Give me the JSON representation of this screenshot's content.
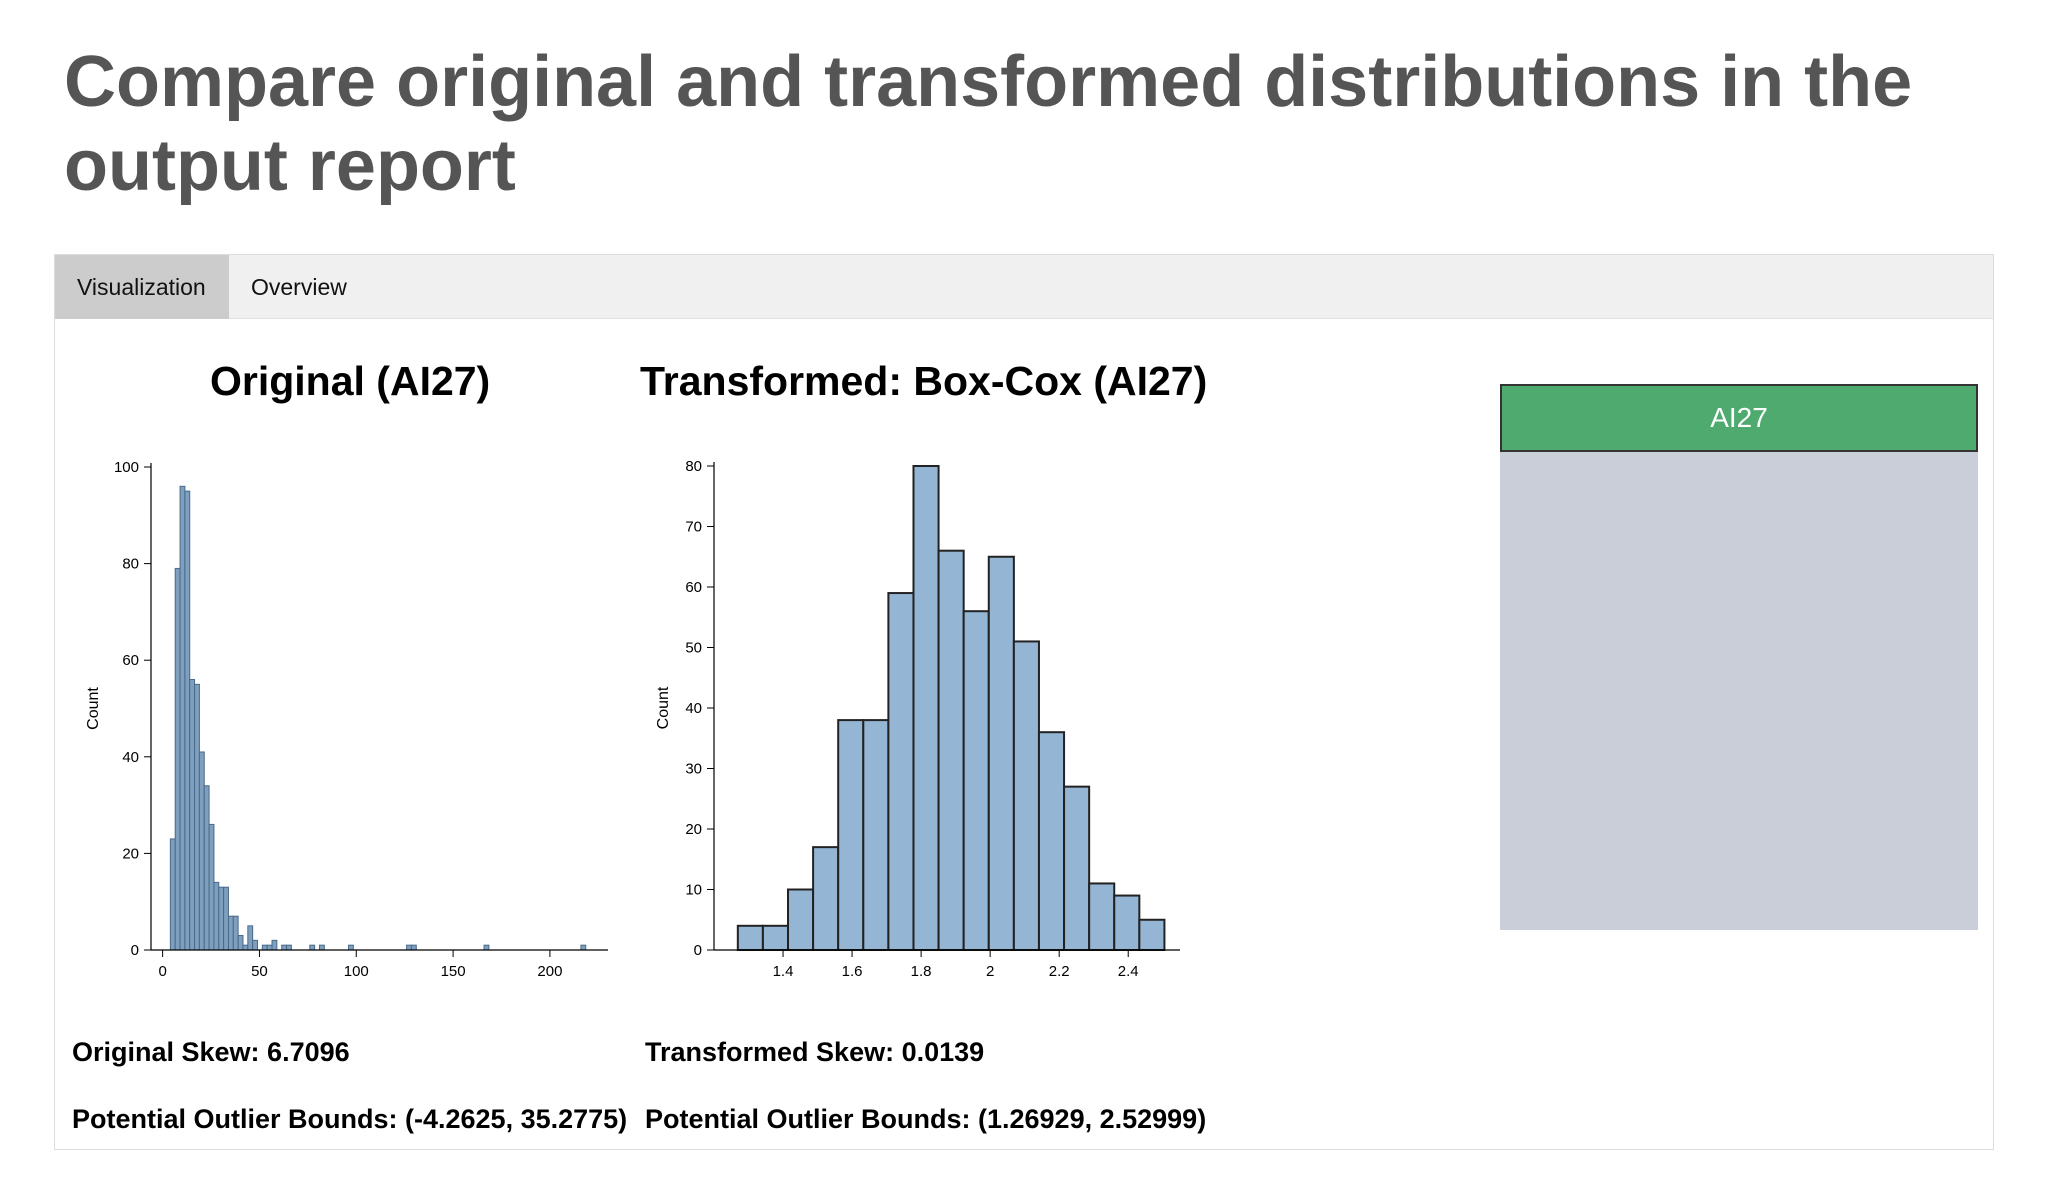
{
  "page": {
    "title": "Compare original and transformed distributions in the output report"
  },
  "tabs": [
    {
      "label": "Visualization",
      "active": true
    },
    {
      "label": "Overview",
      "active": false
    }
  ],
  "sidebar": {
    "label": "AI27",
    "color": "#4faa70"
  },
  "stats": {
    "original_skew": "Original Skew: 6.7096",
    "original_bounds": "Potential Outlier Bounds: (-4.2625, 35.2775)",
    "transformed_skew": "Transformed Skew: 0.0139",
    "transformed_bounds": "Potential Outlier Bounds: (1.26929, 2.52999)"
  },
  "chart_data": [
    {
      "type": "bar",
      "title": "Original (AI27)",
      "xlabel": "",
      "ylabel": "Count",
      "xlim": [
        -6,
        230
      ],
      "ylim": [
        0,
        100
      ],
      "xticks": [
        0,
        50,
        100,
        150,
        200
      ],
      "yticks": [
        0,
        20,
        40,
        60,
        80,
        100
      ],
      "bin_width": 2.5,
      "bin_starts": [
        4,
        6.5,
        9,
        11.5,
        14,
        16.5,
        19,
        21.5,
        24,
        26.5,
        29,
        31.5,
        34,
        36.5,
        39,
        41.5,
        44,
        46.5,
        49,
        51.5,
        54,
        56.5,
        59,
        61.5,
        64,
        76,
        81,
        96,
        126,
        128.5,
        166,
        216
      ],
      "values": [
        23,
        79,
        96,
        95,
        56,
        55,
        41,
        34,
        26,
        14,
        13,
        13,
        7,
        7,
        3,
        1,
        5,
        2,
        0,
        1,
        1,
        2,
        0,
        1,
        1,
        1,
        1,
        1,
        1,
        1,
        1,
        1
      ],
      "fill": "#7f9fbf",
      "edge": "#4a6a8a"
    },
    {
      "type": "bar",
      "title": "Transformed: Box-Cox (AI27)",
      "xlabel": "",
      "ylabel": "Count",
      "xlim": [
        1.2,
        2.55
      ],
      "ylim": [
        0,
        80
      ],
      "xticks": [
        1.4,
        1.6,
        1.8,
        2.0,
        2.2,
        2.4
      ],
      "yticks": [
        0,
        10,
        20,
        30,
        40,
        50,
        60,
        70,
        80
      ],
      "bin_start": 1.269,
      "bin_width": 0.0727,
      "values": [
        4,
        4,
        10,
        17,
        38,
        38,
        59,
        80,
        66,
        56,
        65,
        51,
        36,
        27,
        11,
        9,
        5
      ],
      "fill": "#94b5d4",
      "edge": "#222222"
    }
  ]
}
